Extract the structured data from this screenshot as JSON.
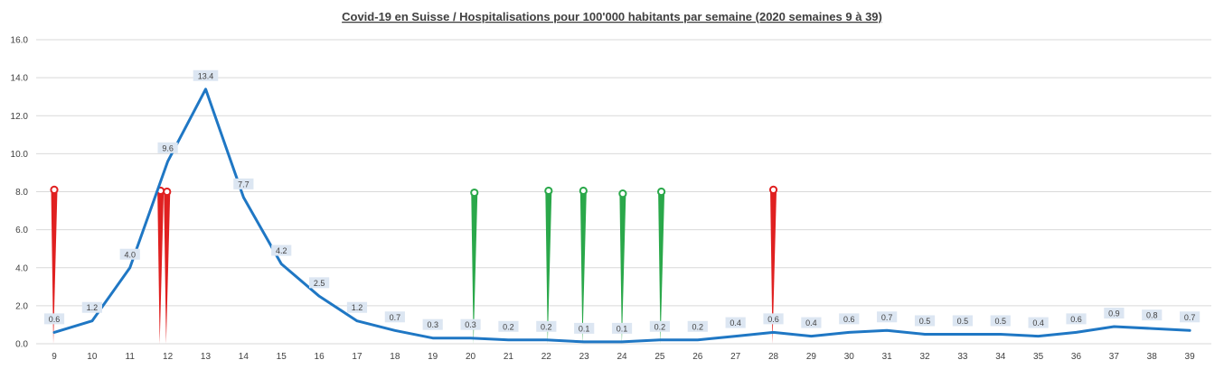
{
  "chart_data": {
    "type": "line",
    "title": "Covid-19 en Suisse / Hospitalisations pour 100'000 habitants par semaine (2020 semaines 9 à 39)",
    "xlabel": "",
    "ylabel": "",
    "ylim": [
      0,
      16
    ],
    "yticks": [
      "0.0",
      "2.0",
      "4.0",
      "6.0",
      "8.0",
      "10.0",
      "12.0",
      "14.0",
      "16.0"
    ],
    "grid": true,
    "legend": "none",
    "categories": [
      "9",
      "10",
      "11",
      "12",
      "13",
      "14",
      "15",
      "16",
      "17",
      "18",
      "19",
      "20",
      "21",
      "22",
      "23",
      "24",
      "25",
      "26",
      "27",
      "28",
      "29",
      "30",
      "31",
      "32",
      "33",
      "34",
      "35",
      "36",
      "37",
      "38",
      "39"
    ],
    "series": [
      {
        "values": [
          0.6,
          1.2,
          4.0,
          9.6,
          13.4,
          7.7,
          4.2,
          2.5,
          1.2,
          0.7,
          0.3,
          0.3,
          0.2,
          0.2,
          0.1,
          0.1,
          0.2,
          0.2,
          0.4,
          0.6,
          0.4,
          0.6,
          0.7,
          0.5,
          0.5,
          0.5,
          0.4,
          0.6,
          0.9,
          0.8,
          0.7
        ],
        "labels": [
          "0.6",
          "1.2",
          "4.0",
          "9.6",
          "13.4",
          "7.7",
          "4.2",
          "2.5",
          "1.2",
          "0.7",
          "0.3",
          "0.3",
          "0.2",
          "0.2",
          "0.1",
          "0.1",
          "0.2",
          "0.2",
          "0.4",
          "0.6",
          "0.4",
          "0.6",
          "0.7",
          "0.5",
          "0.5",
          "0.5",
          "0.4",
          "0.6",
          "0.9",
          "0.8",
          "0.7"
        ]
      }
    ],
    "markers": [
      {
        "week": 9,
        "offset": 0.0,
        "height": 8.1,
        "kind": "red"
      },
      {
        "week": 12,
        "offset": -0.19,
        "height": 8.05,
        "kind": "red"
      },
      {
        "week": 12,
        "offset": -0.02,
        "height": 8.0,
        "kind": "red"
      },
      {
        "week": 20,
        "offset": 0.1,
        "height": 7.95,
        "kind": "green"
      },
      {
        "week": 22,
        "offset": 0.06,
        "height": 8.05,
        "kind": "green"
      },
      {
        "week": 23,
        "offset": -0.02,
        "height": 8.05,
        "kind": "green"
      },
      {
        "week": 24,
        "offset": 0.02,
        "height": 7.9,
        "kind": "green"
      },
      {
        "week": 25,
        "offset": 0.04,
        "height": 8.0,
        "kind": "green"
      },
      {
        "week": 28,
        "offset": 0.0,
        "height": 8.1,
        "kind": "red"
      }
    ],
    "colors": {
      "line": "#1f77c4",
      "grid": "#d9d9d9",
      "label_bg": "#dce6f2",
      "red": "#e02020",
      "green": "#2aa84a"
    }
  }
}
